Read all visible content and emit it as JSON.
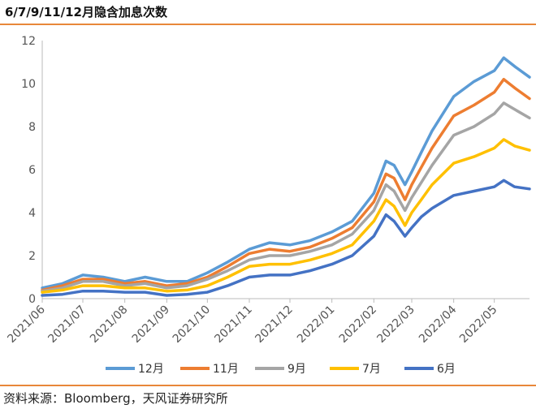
{
  "title": "6/7/9/11/12月隐含加息次数",
  "source": "资料来源：Bloomberg，天风证券研究所",
  "chart_data": {
    "type": "line",
    "ylim": [
      0,
      12
    ],
    "yticks": [
      0,
      2,
      4,
      6,
      8,
      10,
      12
    ],
    "x_labels": [
      "2021/06",
      "2021/07",
      "2021/08",
      "2021/09",
      "2021/10",
      "2021/11",
      "2021/12",
      "2022/01",
      "2022/02",
      "2022/03",
      "2022/04",
      "2022/05"
    ],
    "x": [
      "2021-06-01",
      "2021-06-16",
      "2021-07-01",
      "2021-07-16",
      "2021-08-01",
      "2021-08-16",
      "2021-09-01",
      "2021-09-16",
      "2021-10-01",
      "2021-10-16",
      "2021-11-01",
      "2021-11-16",
      "2021-12-01",
      "2021-12-16",
      "2022-01-01",
      "2022-01-16",
      "2022-02-01",
      "2022-02-10",
      "2022-02-16",
      "2022-02-24",
      "2022-03-01",
      "2022-03-08",
      "2022-03-16",
      "2022-04-01",
      "2022-04-16",
      "2022-05-01",
      "2022-05-08",
      "2022-05-16",
      "2022-05-27"
    ],
    "series": [
      {
        "name": "12月",
        "color": "#5b9bd5",
        "values": [
          0.5,
          0.7,
          1.1,
          1.0,
          0.8,
          1.0,
          0.8,
          0.8,
          1.2,
          1.7,
          2.3,
          2.6,
          2.5,
          2.7,
          3.1,
          3.6,
          4.9,
          6.4,
          6.2,
          5.3,
          5.9,
          6.8,
          7.8,
          9.4,
          10.1,
          10.6,
          11.2,
          10.8,
          10.3
        ]
      },
      {
        "name": "11月",
        "color": "#ed7d31",
        "values": [
          0.4,
          0.6,
          0.9,
          0.9,
          0.7,
          0.8,
          0.6,
          0.7,
          1.0,
          1.5,
          2.1,
          2.3,
          2.2,
          2.4,
          2.8,
          3.3,
          4.5,
          5.8,
          5.6,
          4.6,
          5.3,
          6.1,
          7.0,
          8.5,
          9.0,
          9.6,
          10.2,
          9.8,
          9.3
        ]
      },
      {
        "name": "9月",
        "color": "#a5a5a5",
        "values": [
          0.35,
          0.5,
          0.8,
          0.8,
          0.6,
          0.7,
          0.5,
          0.6,
          0.9,
          1.3,
          1.8,
          2.0,
          2.0,
          2.2,
          2.5,
          3.0,
          4.1,
          5.3,
          5.0,
          4.1,
          4.7,
          5.4,
          6.2,
          7.6,
          8.0,
          8.6,
          9.1,
          8.8,
          8.4
        ]
      },
      {
        "name": "7月",
        "color": "#ffc000",
        "values": [
          0.3,
          0.4,
          0.6,
          0.6,
          0.5,
          0.5,
          0.35,
          0.4,
          0.6,
          1.0,
          1.5,
          1.6,
          1.6,
          1.8,
          2.1,
          2.5,
          3.6,
          4.6,
          4.3,
          3.4,
          4.0,
          4.6,
          5.3,
          6.3,
          6.6,
          7.0,
          7.4,
          7.1,
          6.9
        ]
      },
      {
        "name": "6月",
        "color": "#4472c4",
        "values": [
          0.15,
          0.2,
          0.35,
          0.35,
          0.3,
          0.3,
          0.15,
          0.2,
          0.3,
          0.6,
          1.0,
          1.1,
          1.1,
          1.3,
          1.6,
          2.0,
          2.9,
          3.9,
          3.6,
          2.9,
          3.3,
          3.8,
          4.2,
          4.8,
          5.0,
          5.2,
          5.5,
          5.2,
          5.1
        ]
      }
    ]
  }
}
